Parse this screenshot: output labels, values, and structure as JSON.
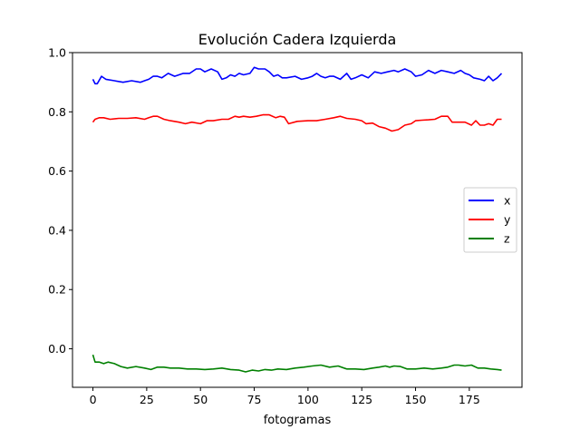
{
  "chart_data": {
    "type": "line",
    "title": "Evolución Cadera Izquierda",
    "xlabel": "fotogramas",
    "ylabel": "",
    "xlim": [
      -9.5,
      199.5
    ],
    "ylim": [
      -0.13,
      1.0
    ],
    "xticks": [
      0,
      25,
      50,
      75,
      100,
      125,
      150,
      175
    ],
    "xtick_labels": [
      "0",
      "25",
      "50",
      "75",
      "100",
      "125",
      "150",
      "175"
    ],
    "yticks": [
      0.0,
      0.2,
      0.4,
      0.6,
      0.8,
      1.0
    ],
    "ytick_labels": [
      "0.0",
      "0.2",
      "0.4",
      "0.6",
      "0.8",
      "1.0"
    ],
    "grid": false,
    "legend_position": "center-right",
    "series": [
      {
        "name": "x",
        "color": "#0000ff",
        "x": [
          0,
          1,
          2,
          4,
          6,
          10,
          14,
          18,
          22,
          24,
          26,
          28,
          30,
          32,
          35,
          38,
          40,
          42,
          45,
          48,
          50,
          52,
          55,
          58,
          60,
          62,
          64,
          66,
          68,
          70,
          73,
          75,
          77,
          80,
          82,
          84,
          86,
          88,
          90,
          94,
          97,
          100,
          102,
          104,
          106,
          108,
          110,
          112,
          115,
          118,
          120,
          122,
          125,
          128,
          131,
          134,
          137,
          140,
          142,
          145,
          148,
          150,
          153,
          156,
          159,
          162,
          165,
          168,
          171,
          173,
          175,
          177,
          180,
          182,
          184,
          186,
          188,
          190
        ],
        "y": [
          0.91,
          0.895,
          0.895,
          0.92,
          0.91,
          0.905,
          0.9,
          0.905,
          0.9,
          0.905,
          0.91,
          0.92,
          0.92,
          0.915,
          0.93,
          0.92,
          0.925,
          0.93,
          0.93,
          0.945,
          0.945,
          0.935,
          0.945,
          0.935,
          0.91,
          0.915,
          0.925,
          0.92,
          0.93,
          0.925,
          0.93,
          0.95,
          0.945,
          0.945,
          0.935,
          0.92,
          0.925,
          0.915,
          0.915,
          0.92,
          0.91,
          0.915,
          0.92,
          0.93,
          0.92,
          0.915,
          0.92,
          0.92,
          0.91,
          0.93,
          0.91,
          0.915,
          0.925,
          0.915,
          0.935,
          0.93,
          0.935,
          0.94,
          0.935,
          0.945,
          0.935,
          0.92,
          0.925,
          0.94,
          0.93,
          0.94,
          0.935,
          0.93,
          0.94,
          0.93,
          0.925,
          0.915,
          0.91,
          0.905,
          0.92,
          0.905,
          0.915,
          0.93
        ]
      },
      {
        "name": "y",
        "color": "#ff0000",
        "x": [
          0,
          1,
          3,
          5,
          8,
          12,
          16,
          20,
          24,
          26,
          28,
          30,
          33,
          36,
          40,
          43,
          46,
          50,
          53,
          56,
          60,
          63,
          66,
          68,
          70,
          73,
          76,
          79,
          82,
          85,
          87,
          89,
          91,
          95,
          100,
          104,
          108,
          112,
          115,
          118,
          122,
          125,
          127,
          130,
          133,
          136,
          139,
          142,
          145,
          148,
          150,
          153,
          156,
          159,
          162,
          165,
          167,
          170,
          173,
          176,
          178,
          180,
          182,
          184,
          186,
          188,
          190
        ],
        "y": [
          0.765,
          0.775,
          0.78,
          0.78,
          0.775,
          0.778,
          0.778,
          0.78,
          0.775,
          0.78,
          0.785,
          0.785,
          0.775,
          0.77,
          0.765,
          0.76,
          0.765,
          0.76,
          0.77,
          0.77,
          0.775,
          0.775,
          0.785,
          0.782,
          0.785,
          0.782,
          0.785,
          0.79,
          0.79,
          0.78,
          0.785,
          0.782,
          0.76,
          0.768,
          0.77,
          0.77,
          0.775,
          0.78,
          0.785,
          0.778,
          0.775,
          0.77,
          0.76,
          0.762,
          0.75,
          0.745,
          0.735,
          0.74,
          0.755,
          0.76,
          0.77,
          0.772,
          0.773,
          0.775,
          0.785,
          0.785,
          0.765,
          0.765,
          0.765,
          0.755,
          0.77,
          0.755,
          0.755,
          0.76,
          0.755,
          0.775,
          0.775
        ]
      },
      {
        "name": "z",
        "color": "#008000",
        "x": [
          0,
          1,
          3,
          5,
          7,
          10,
          13,
          16,
          20,
          24,
          27,
          30,
          33,
          36,
          40,
          44,
          48,
          52,
          56,
          60,
          64,
          68,
          71,
          74,
          77,
          80,
          83,
          86,
          90,
          94,
          98,
          102,
          106,
          110,
          114,
          118,
          122,
          126,
          130,
          133,
          136,
          138,
          140,
          143,
          146,
          150,
          154,
          158,
          162,
          165,
          168,
          170,
          173,
          176,
          179,
          182,
          185,
          188,
          190
        ],
        "y": [
          -0.02,
          -0.045,
          -0.045,
          -0.05,
          -0.045,
          -0.05,
          -0.06,
          -0.065,
          -0.06,
          -0.065,
          -0.07,
          -0.062,
          -0.062,
          -0.065,
          -0.065,
          -0.068,
          -0.068,
          -0.07,
          -0.068,
          -0.065,
          -0.07,
          -0.072,
          -0.078,
          -0.072,
          -0.075,
          -0.07,
          -0.072,
          -0.068,
          -0.07,
          -0.065,
          -0.062,
          -0.058,
          -0.055,
          -0.062,
          -0.058,
          -0.068,
          -0.068,
          -0.07,
          -0.065,
          -0.062,
          -0.058,
          -0.062,
          -0.058,
          -0.06,
          -0.068,
          -0.068,
          -0.065,
          -0.068,
          -0.065,
          -0.062,
          -0.055,
          -0.055,
          -0.058,
          -0.055,
          -0.065,
          -0.065,
          -0.068,
          -0.07,
          -0.072
        ]
      }
    ]
  }
}
